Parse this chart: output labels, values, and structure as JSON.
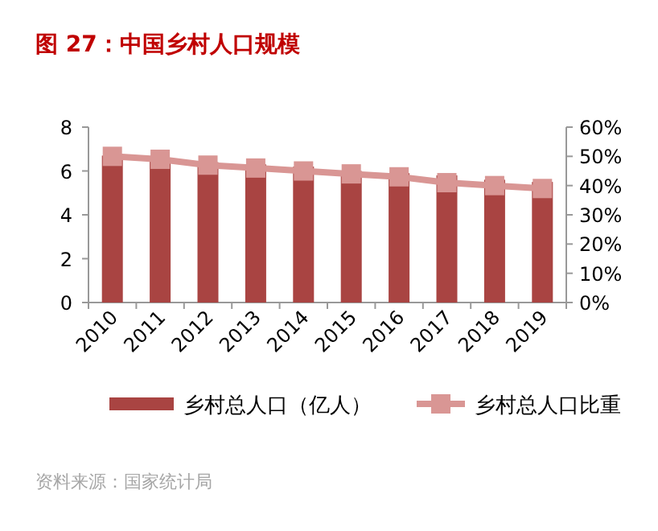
{
  "chart_data": {
    "type": "bar",
    "title": "图 27：中国乡村人口规模",
    "categories": [
      "2010",
      "2011",
      "2012",
      "2013",
      "2014",
      "2015",
      "2016",
      "2017",
      "2018",
      "2019"
    ],
    "series": [
      {
        "name": "乡村总人口（亿人）",
        "color": "#a94442",
        "values": [
          6.7,
          6.6,
          6.4,
          6.3,
          6.2,
          6.0,
          5.9,
          5.8,
          5.6,
          5.5
        ]
      },
      {
        "name": "乡村总人口比重",
        "type": "line",
        "axis": "y2",
        "color": "#d99694",
        "marker": "square",
        "values": [
          50,
          49,
          47,
          46,
          45,
          44,
          43,
          41,
          40,
          39
        ]
      }
    ],
    "ylim": [
      0,
      8
    ],
    "yticks": [
      0,
      2,
      4,
      6,
      8
    ],
    "y2lim": [
      0,
      60
    ],
    "y2ticks": [
      {
        "value": 0,
        "label": "0%"
      },
      {
        "value": 10,
        "label": "10%"
      },
      {
        "value": 20,
        "label": "20%"
      },
      {
        "value": 30,
        "label": "30%"
      },
      {
        "value": 40,
        "label": "40%"
      },
      {
        "value": 50,
        "label": "50%"
      },
      {
        "value": 60,
        "label": "60%"
      }
    ],
    "legend": "bottom",
    "annotations": [
      "资料来源：国家统计局"
    ]
  }
}
